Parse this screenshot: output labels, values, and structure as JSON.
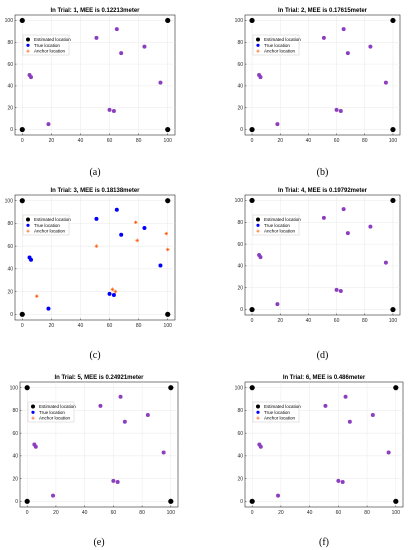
{
  "legend": {
    "estimated": "Estimated location",
    "true": "True location",
    "anchor": "Anchor location"
  },
  "colors": {
    "estimated": "#000000",
    "true": "#0000ff",
    "anchor": "#ff5500",
    "overlap": "#8b3fbf"
  },
  "chart_data": [
    {
      "type": "scatter",
      "caption": "(a)",
      "title": "In Trial: 1, MEE is 0.12213meter",
      "xlim": [
        -5,
        105
      ],
      "ylim": [
        -5,
        105
      ],
      "xticks": [
        0,
        20,
        40,
        60,
        80,
        100
      ],
      "yticks": [
        0,
        20,
        40,
        60,
        80,
        100
      ],
      "estimated": [
        [
          0,
          100
        ],
        [
          100,
          100
        ],
        [
          0,
          0
        ],
        [
          100,
          0
        ]
      ],
      "true": [
        [
          5,
          50
        ],
        [
          6,
          48
        ],
        [
          18,
          5
        ],
        [
          51,
          84
        ],
        [
          60,
          18
        ],
        [
          63,
          17
        ],
        [
          65,
          92
        ],
        [
          68,
          70
        ],
        [
          84,
          76
        ],
        [
          95,
          43
        ]
      ],
      "anchor": []
    },
    {
      "type": "scatter",
      "caption": "(b)",
      "title": "In Trial: 2, MEE is 0.17615meter",
      "xlim": [
        -5,
        105
      ],
      "ylim": [
        -5,
        105
      ],
      "xticks": [
        0,
        20,
        40,
        60,
        80,
        100
      ],
      "yticks": [
        0,
        20,
        40,
        60,
        80,
        100
      ],
      "estimated": [
        [
          0,
          100
        ],
        [
          100,
          100
        ],
        [
          0,
          0
        ],
        [
          100,
          0
        ]
      ],
      "true": [
        [
          5,
          50
        ],
        [
          6,
          48
        ],
        [
          18,
          5
        ],
        [
          51,
          84
        ],
        [
          60,
          18
        ],
        [
          63,
          17
        ],
        [
          65,
          92
        ],
        [
          68,
          70
        ],
        [
          84,
          76
        ],
        [
          95,
          43
        ]
      ],
      "anchor": []
    },
    {
      "type": "scatter",
      "caption": "(c)",
      "title": "In Trial: 3, MEE is 0.18138meter",
      "xlim": [
        -5,
        105
      ],
      "ylim": [
        -5,
        105
      ],
      "xticks": [
        0,
        20,
        40,
        60,
        80,
        100
      ],
      "yticks": [
        0,
        20,
        40,
        60,
        80,
        100
      ],
      "estimated": [
        [
          0,
          100
        ],
        [
          100,
          100
        ],
        [
          0,
          0
        ],
        [
          100,
          0
        ]
      ],
      "true": [
        [
          5,
          50
        ],
        [
          6,
          48
        ],
        [
          18,
          5
        ],
        [
          51,
          84
        ],
        [
          60,
          18
        ],
        [
          63,
          17
        ],
        [
          65,
          92
        ],
        [
          68,
          70
        ],
        [
          84,
          76
        ],
        [
          95,
          43
        ]
      ],
      "anchor": [
        [
          10,
          16
        ],
        [
          51,
          60
        ],
        [
          62,
          22
        ],
        [
          64,
          20
        ],
        [
          78,
          81
        ],
        [
          79,
          65
        ],
        [
          99,
          71
        ],
        [
          100,
          57
        ]
      ]
    },
    {
      "type": "scatter",
      "caption": "(d)",
      "title": "In Trial: 4, MEE is 0.19792meter",
      "xlim": [
        -5,
        105
      ],
      "ylim": [
        -5,
        105
      ],
      "xticks": [
        0,
        20,
        40,
        60,
        80,
        100
      ],
      "yticks": [
        0,
        20,
        40,
        60,
        80,
        100
      ],
      "estimated": [
        [
          0,
          100
        ],
        [
          100,
          100
        ],
        [
          0,
          0
        ],
        [
          100,
          0
        ]
      ],
      "true": [
        [
          5,
          50
        ],
        [
          6,
          48
        ],
        [
          18,
          5
        ],
        [
          51,
          84
        ],
        [
          60,
          18
        ],
        [
          63,
          17
        ],
        [
          65,
          92
        ],
        [
          68,
          70
        ],
        [
          84,
          76
        ],
        [
          95,
          43
        ]
      ],
      "anchor": []
    },
    {
      "type": "scatter",
      "caption": "(e)",
      "title": "In Trial: 5, MEE is 0.24921meter",
      "xlim": [
        -5,
        105
      ],
      "ylim": [
        -5,
        105
      ],
      "xticks": [
        0,
        20,
        40,
        60,
        80,
        100
      ],
      "yticks": [
        0,
        20,
        40,
        60,
        80,
        100
      ],
      "estimated": [
        [
          0,
          100
        ],
        [
          100,
          100
        ],
        [
          0,
          0
        ],
        [
          100,
          0
        ]
      ],
      "true": [
        [
          5,
          50
        ],
        [
          6,
          48
        ],
        [
          18,
          5
        ],
        [
          51,
          84
        ],
        [
          60,
          18
        ],
        [
          63,
          17
        ],
        [
          65,
          92
        ],
        [
          68,
          70
        ],
        [
          84,
          76
        ],
        [
          95,
          43
        ]
      ],
      "anchor": []
    },
    {
      "type": "scatter",
      "caption": "(f)",
      "title": "In Trial: 6, MEE is 0.486meter",
      "xlim": [
        -5,
        105
      ],
      "ylim": [
        -5,
        105
      ],
      "xticks": [
        0,
        20,
        40,
        60,
        80,
        100
      ],
      "yticks": [
        0,
        20,
        40,
        60,
        80,
        100
      ],
      "estimated": [
        [
          0,
          100
        ],
        [
          100,
          100
        ],
        [
          0,
          0
        ],
        [
          100,
          0
        ]
      ],
      "true": [
        [
          5,
          50
        ],
        [
          6,
          48
        ],
        [
          18,
          5
        ],
        [
          51,
          84
        ],
        [
          60,
          18
        ],
        [
          63,
          17
        ],
        [
          65,
          92
        ],
        [
          68,
          70
        ],
        [
          84,
          76
        ],
        [
          95,
          43
        ]
      ],
      "anchor": []
    }
  ]
}
